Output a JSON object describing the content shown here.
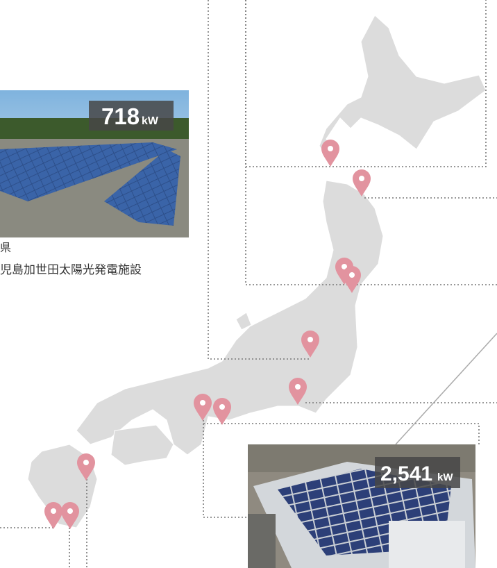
{
  "photos": [
    {
      "capacity": "718",
      "unit": "kW",
      "prefecture": "県",
      "name": "児島加世田太陽光発電施設"
    },
    {
      "capacity": "2,541",
      "unit": "kW"
    }
  ]
}
